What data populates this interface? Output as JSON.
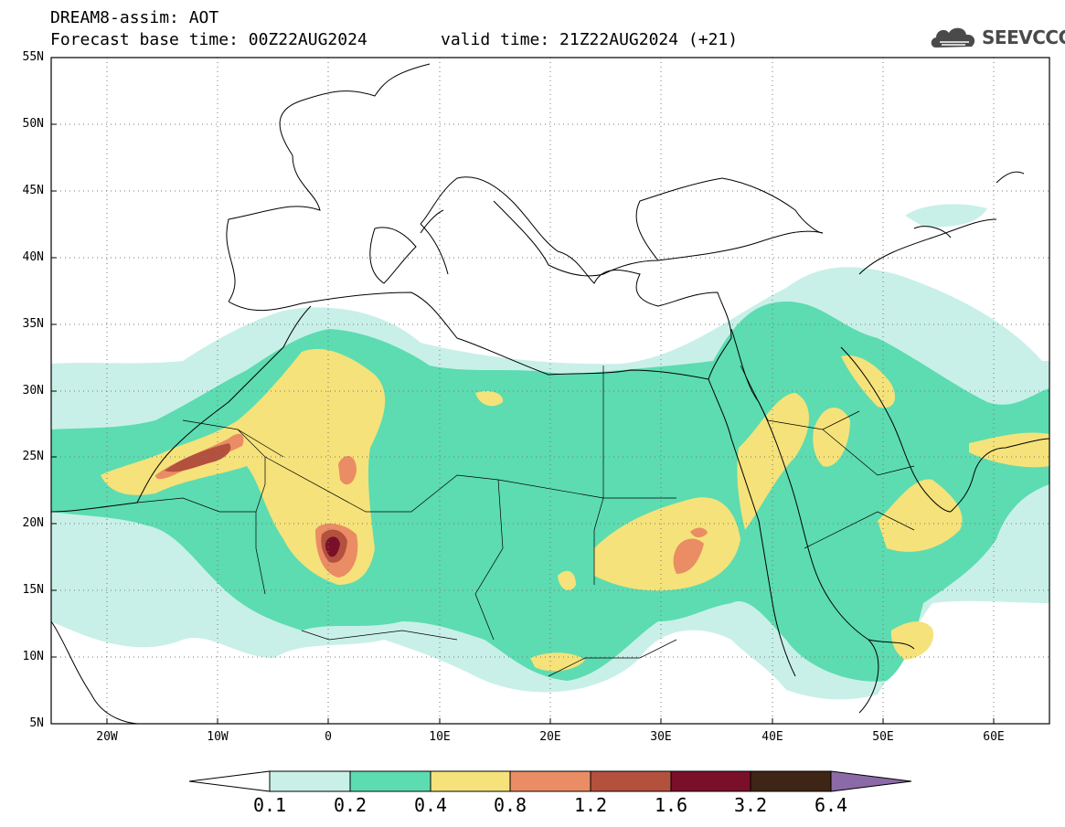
{
  "header": {
    "title": "DREAM8-assim: AOT",
    "base_time": "Forecast base time: 00Z22AUG2024",
    "valid_time": "valid time: 21Z22AUG2024 (+21)"
  },
  "logo": {
    "text": "SEEVCCC",
    "icon": "cloud-logo-icon"
  },
  "map": {
    "lon_range": [
      -25,
      65
    ],
    "lat_range": [
      5,
      55
    ],
    "lat_ticks": [
      "55N",
      "50N",
      "45N",
      "40N",
      "35N",
      "30N",
      "25N",
      "20N",
      "15N",
      "10N",
      "5N"
    ],
    "lon_ticks": [
      "20W",
      "10W",
      "0",
      "10E",
      "20E",
      "30E",
      "40E",
      "50E",
      "60E"
    ]
  },
  "colorbar": {
    "colors": [
      "#ffffff",
      "#c8f0e8",
      "#5cdcb0",
      "#f5e27a",
      "#ea8c64",
      "#b4503e",
      "#7a0f2a",
      "#3e2516",
      "#8c6aa8"
    ],
    "labels": [
      "0.1",
      "0.2",
      "0.4",
      "0.8",
      "1.2",
      "1.6",
      "3.2",
      "6.4"
    ]
  }
}
